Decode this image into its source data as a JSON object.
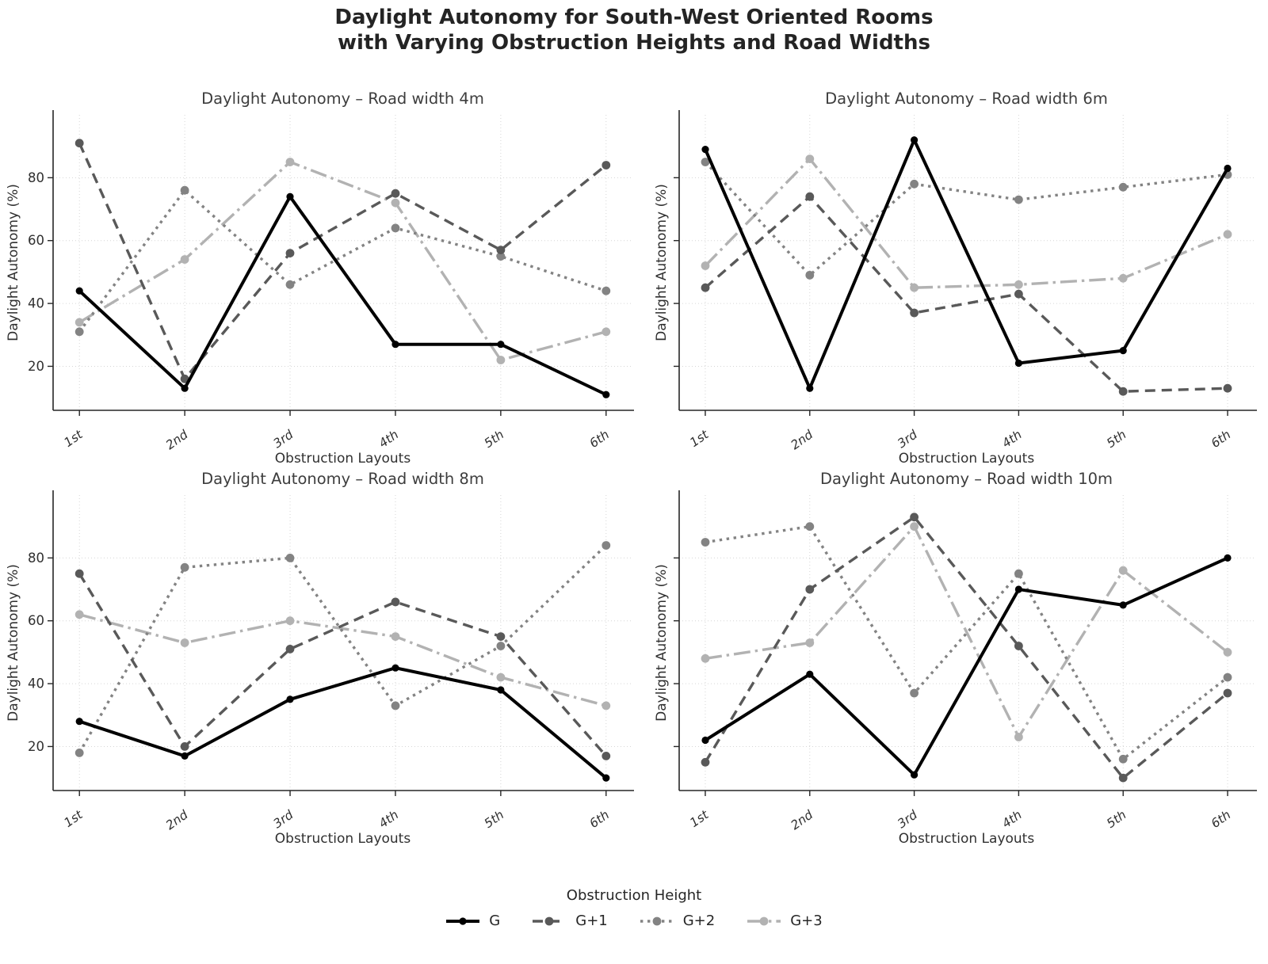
{
  "figure": {
    "title_line1": "Daylight Autonomy for South-West Oriented Rooms",
    "title_line2": "with Varying Obstruction Heights and Road Widths"
  },
  "legend": {
    "title": "Obstruction Height",
    "entries": [
      {
        "label": "G",
        "color": "#000000",
        "style": "solid"
      },
      {
        "label": "G+1",
        "color": "#595959",
        "style": "dashed"
      },
      {
        "label": "G+2",
        "color": "#838383",
        "style": "dotted"
      },
      {
        "label": "G+3",
        "color": "#b2b2b2",
        "style": "dashdot"
      }
    ]
  },
  "chart_data": [
    {
      "type": "line",
      "title": "Daylight Autonomy – Road width 4m",
      "xlabel": "Obstruction Layouts",
      "ylabel": "Daylight Autonomy (%)",
      "categories": [
        "1st",
        "2nd",
        "3rd",
        "4th",
        "5th",
        "6th"
      ],
      "yticks": [
        20,
        40,
        60,
        80
      ],
      "ylim": [
        6,
        100
      ],
      "grid": true,
      "show_ytick_labels": true,
      "series": [
        {
          "name": "G",
          "values": [
            44,
            13,
            74,
            27,
            27,
            11
          ]
        },
        {
          "name": "G+1",
          "values": [
            91,
            16,
            56,
            75,
            57,
            84
          ]
        },
        {
          "name": "G+2",
          "values": [
            31,
            76,
            46,
            64,
            55,
            44
          ]
        },
        {
          "name": "G+3",
          "values": [
            34,
            54,
            85,
            72,
            22,
            31
          ]
        }
      ]
    },
    {
      "type": "line",
      "title": "Daylight Autonomy – Road width 6m",
      "xlabel": "Obstruction Layouts",
      "ylabel": "Daylight Autonomy (%)",
      "categories": [
        "1st",
        "2nd",
        "3rd",
        "4th",
        "5th",
        "6th"
      ],
      "yticks": [
        20,
        40,
        60,
        80
      ],
      "ylim": [
        6,
        100
      ],
      "grid": true,
      "show_ytick_labels": false,
      "series": [
        {
          "name": "G",
          "values": [
            89,
            13,
            92,
            21,
            25,
            83
          ]
        },
        {
          "name": "G+1",
          "values": [
            45,
            74,
            37,
            43,
            12,
            13
          ]
        },
        {
          "name": "G+2",
          "values": [
            85,
            49,
            78,
            73,
            77,
            81
          ]
        },
        {
          "name": "G+3",
          "values": [
            52,
            86,
            45,
            46,
            48,
            62
          ]
        }
      ]
    },
    {
      "type": "line",
      "title": "Daylight Autonomy – Road width 8m",
      "xlabel": "Obstruction Layouts",
      "ylabel": "Daylight Autonomy (%)",
      "categories": [
        "1st",
        "2nd",
        "3rd",
        "4th",
        "5th",
        "6th"
      ],
      "yticks": [
        20,
        40,
        60,
        80
      ],
      "ylim": [
        6,
        100
      ],
      "grid": true,
      "show_ytick_labels": true,
      "series": [
        {
          "name": "G",
          "values": [
            28,
            17,
            35,
            45,
            38,
            10
          ]
        },
        {
          "name": "G+1",
          "values": [
            75,
            20,
            51,
            66,
            55,
            17
          ]
        },
        {
          "name": "G+2",
          "values": [
            18,
            77,
            80,
            33,
            52,
            84
          ]
        },
        {
          "name": "G+3",
          "values": [
            62,
            53,
            60,
            55,
            42,
            33
          ]
        }
      ]
    },
    {
      "type": "line",
      "title": "Daylight Autonomy – Road width 10m",
      "xlabel": "Obstruction Layouts",
      "ylabel": "Daylight Autonomy (%)",
      "categories": [
        "1st",
        "2nd",
        "3rd",
        "4th",
        "5th",
        "6th"
      ],
      "yticks": [
        20,
        40,
        60,
        80
      ],
      "ylim": [
        6,
        100
      ],
      "grid": true,
      "show_ytick_labels": false,
      "series": [
        {
          "name": "G",
          "values": [
            22,
            43,
            11,
            70,
            65,
            80
          ]
        },
        {
          "name": "G+1",
          "values": [
            15,
            70,
            93,
            52,
            10,
            37
          ]
        },
        {
          "name": "G+2",
          "values": [
            85,
            90,
            37,
            75,
            16,
            42
          ]
        },
        {
          "name": "G+3",
          "values": [
            48,
            53,
            90,
            23,
            76,
            50
          ]
        }
      ]
    }
  ]
}
